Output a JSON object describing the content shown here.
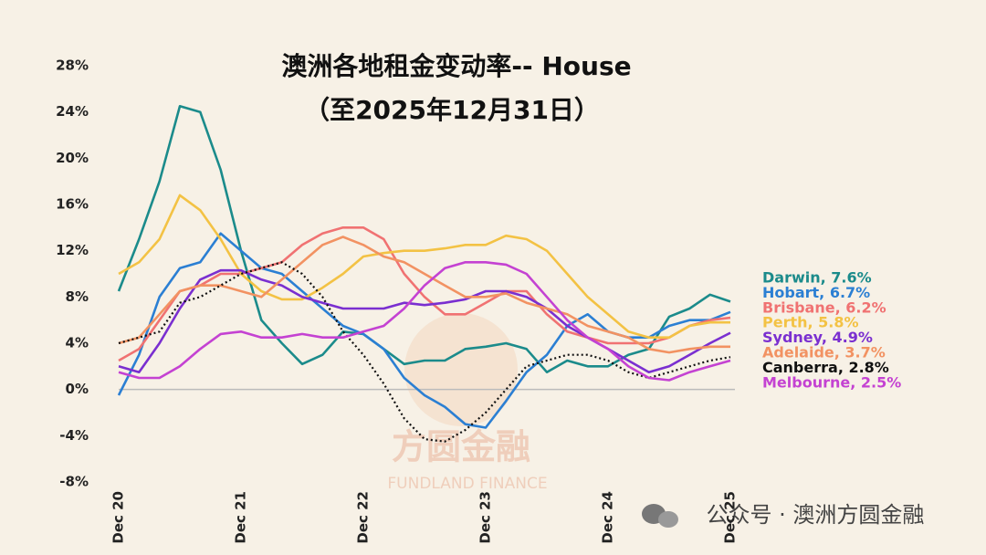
{
  "chart_data": {
    "type": "line",
    "title": "澳洲各地租金变动率-- House",
    "subtitle": "（至2025年12月31日）",
    "watermark": "方圆金融",
    "watermark_sub": "FUNDLAND FINANCE",
    "footer": "公众号 · 澳洲方圆金融",
    "categories": [
      "Dec 20",
      null,
      null,
      null,
      null,
      null,
      "Dec 21",
      null,
      null,
      null,
      null,
      null,
      "Dec 22",
      null,
      null,
      null,
      null,
      null,
      "Dec 23",
      null,
      null,
      null,
      null,
      null,
      "Dec 24",
      null,
      null,
      null,
      null,
      null,
      "Dec 25"
    ],
    "ylim": [
      -8,
      28
    ],
    "yticks": [
      {
        "value": -8,
        "label": "-8%"
      },
      {
        "value": -4,
        "label": "-4%"
      },
      {
        "value": 0,
        "label": "0%"
      },
      {
        "value": 4,
        "label": "4%"
      },
      {
        "value": 8,
        "label": "8%"
      },
      {
        "value": 12,
        "label": "12%"
      },
      {
        "value": 16,
        "label": "16%"
      },
      {
        "value": 20,
        "label": "20%"
      },
      {
        "value": 24,
        "label": "24%"
      },
      {
        "value": 28,
        "label": "28%"
      }
    ],
    "zero_line": true,
    "series": [
      {
        "name": "Darwin, 7.6%",
        "color": "#1b8b8b",
        "values": [
          8.5,
          13,
          18,
          24.5,
          24,
          19,
          12,
          6,
          4,
          2.2,
          3,
          5,
          4.8,
          3.5,
          2.2,
          2.5,
          2.5,
          3.5,
          3.7,
          4,
          3.5,
          1.5,
          2.5,
          2,
          2,
          3,
          3.5,
          6.3,
          7,
          8.2,
          7.6
        ]
      },
      {
        "name": "Hobart, 6.7%",
        "color": "#2b7fd3",
        "values": [
          -0.5,
          3,
          8,
          10.5,
          11,
          13.5,
          12,
          10.5,
          10,
          8.5,
          7,
          5.5,
          4.8,
          3.5,
          1,
          -0.5,
          -1.5,
          -3,
          -3.3,
          -1,
          1.5,
          3,
          5.5,
          6.5,
          5,
          4.5,
          4.5,
          5.5,
          6,
          6,
          6.7
        ]
      },
      {
        "name": "Brisbane, 6.2%",
        "color": "#f07272",
        "values": [
          2.5,
          3.5,
          6,
          8.5,
          9,
          10,
          10,
          10.5,
          11,
          12.5,
          13.5,
          14,
          14,
          13,
          10,
          8,
          6.5,
          6.5,
          7.5,
          8.5,
          8.5,
          6.5,
          5,
          4.5,
          4,
          4,
          4,
          4.5,
          5.5,
          6,
          6.2
        ]
      },
      {
        "name": "Perth, 5.8%",
        "color": "#f3c244",
        "values": [
          10,
          11,
          13,
          16.8,
          15.5,
          13,
          10,
          8.5,
          7.8,
          7.8,
          8.8,
          10,
          11.5,
          11.8,
          12,
          12,
          12.2,
          12.5,
          12.5,
          13.3,
          13,
          12,
          10,
          8,
          6.5,
          5,
          4.5,
          4.5,
          5.5,
          5.8,
          5.8
        ]
      },
      {
        "name": "Sydney, 4.9%",
        "color": "#7a2fd0",
        "values": [
          2,
          1.5,
          4,
          7,
          9.5,
          10.3,
          10.3,
          9.5,
          9,
          8,
          7.5,
          7,
          7,
          7,
          7.5,
          7.3,
          7.5,
          7.8,
          8.5,
          8.5,
          8,
          7,
          5.5,
          4.5,
          3.5,
          2.5,
          1.5,
          2,
          3,
          4,
          4.9
        ]
      },
      {
        "name": "Adelaide, 3.7%",
        "color": "#f29262",
        "values": [
          4,
          4.5,
          6.5,
          8.5,
          9,
          9,
          8.5,
          8,
          9.5,
          11,
          12.5,
          13.2,
          12.5,
          11.5,
          11,
          10,
          9,
          8,
          8,
          8.3,
          7.5,
          7,
          6.5,
          5.5,
          5,
          4.5,
          3.5,
          3.2,
          3.5,
          3.7,
          3.7
        ]
      },
      {
        "name": "Canberra, 2.8%",
        "color": "#111111",
        "dashed": true,
        "values": [
          4,
          4.5,
          5,
          7.5,
          8,
          9,
          10,
          10.5,
          11,
          10,
          8,
          5,
          3,
          0.5,
          -2.5,
          -4.3,
          -4.5,
          -3.5,
          -2,
          0,
          2,
          2.5,
          3,
          3,
          2.5,
          1.5,
          1,
          1.5,
          2,
          2.5,
          2.8
        ]
      },
      {
        "name": "Melbourne, 2.5%",
        "color": "#c442d2",
        "values": [
          1.5,
          1,
          1,
          2,
          3.5,
          4.8,
          5,
          4.5,
          4.5,
          4.8,
          4.5,
          4.5,
          5,
          5.5,
          7,
          9,
          10.5,
          11,
          11,
          10.8,
          10,
          8,
          6,
          4.5,
          3.5,
          2,
          1,
          0.8,
          1.5,
          2,
          2.5
        ]
      }
    ]
  }
}
